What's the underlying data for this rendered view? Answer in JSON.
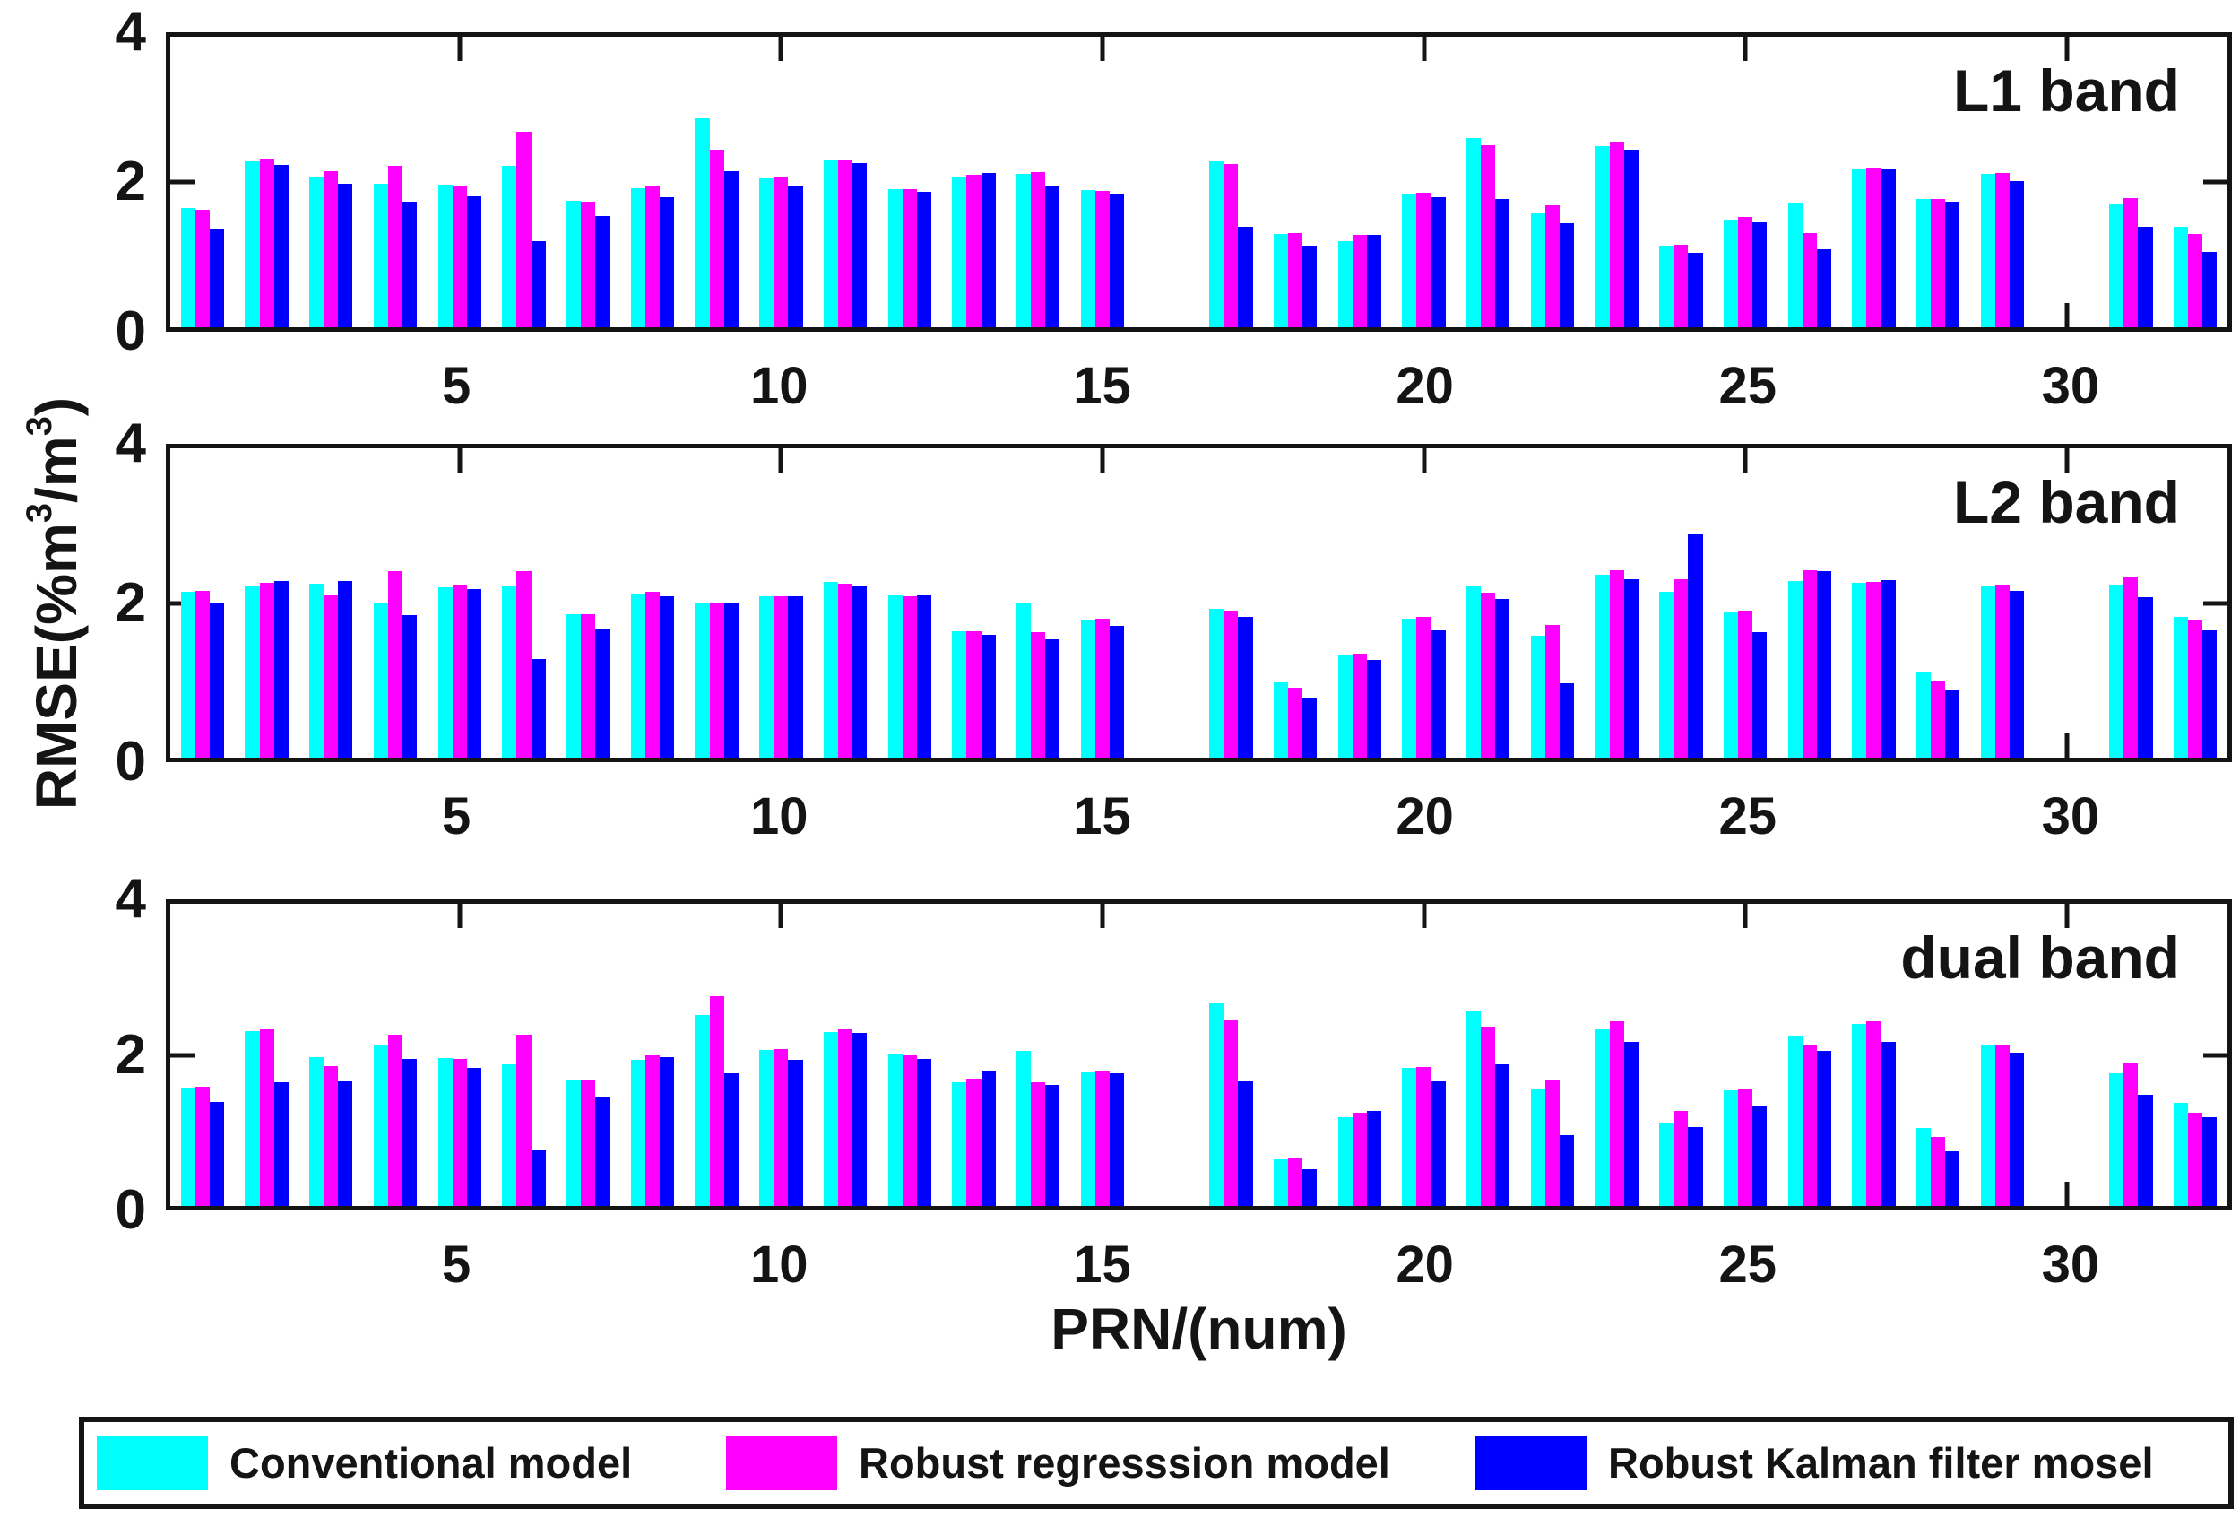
{
  "figure": {
    "background": "#ffffff",
    "axis_color": "#141414",
    "xlabel": "PRN/(num)",
    "ylabel_parts": {
      "p1": "RMSE(%m",
      "s1": "3",
      "p2": "/m",
      "s2": "3",
      "p3": ")"
    },
    "ylim": [
      0,
      4
    ],
    "y_ticks": [
      4,
      2,
      0
    ],
    "x_ticks": [
      5,
      10,
      15,
      20,
      25,
      30
    ],
    "x_count": 32,
    "grid": "off",
    "missing_prn": [
      16,
      30
    ]
  },
  "legend": {
    "entries": [
      {
        "key": "conventional",
        "label": "Conventional model",
        "color": "#00FFFF"
      },
      {
        "key": "robust-regression",
        "label": "Robust regresssion model",
        "color": "#FF00FF"
      },
      {
        "key": "robust-kalman",
        "label": "Robust Kalman filter mosel",
        "color": "#0000FF"
      }
    ],
    "position": "bottom"
  },
  "chart_data": [
    {
      "type": "bar",
      "title": "L1 band",
      "xlabel": "PRN/(num)",
      "ylabel": "RMSE(%m3/m3)",
      "ylim": [
        0,
        4
      ],
      "categories": [
        1,
        2,
        3,
        4,
        5,
        6,
        7,
        8,
        9,
        10,
        11,
        12,
        13,
        14,
        15,
        16,
        17,
        18,
        19,
        20,
        21,
        22,
        23,
        24,
        25,
        26,
        27,
        28,
        29,
        30,
        31,
        32
      ],
      "series": [
        {
          "name": "Conventional model",
          "key": "conventional",
          "color": "#00FFFF",
          "values": [
            1.64,
            2.29,
            2.08,
            1.97,
            1.96,
            2.22,
            1.74,
            1.91,
            2.88,
            2.06,
            2.3,
            1.9,
            2.08,
            2.11,
            1.89,
            null,
            2.28,
            1.29,
            1.19,
            1.84,
            2.61,
            1.57,
            2.5,
            1.12,
            1.48,
            1.72,
            2.19,
            1.76,
            2.11,
            null,
            1.69,
            1.38
          ]
        },
        {
          "name": "Robust regresssion model",
          "key": "robust-regression",
          "color": "#FF00FF",
          "values": [
            1.62,
            2.32,
            2.15,
            2.22,
            1.95,
            2.69,
            1.73,
            1.95,
            2.45,
            2.07,
            2.31,
            1.9,
            2.1,
            2.13,
            1.88,
            null,
            2.25,
            1.3,
            1.27,
            1.85,
            2.51,
            1.68,
            2.56,
            1.14,
            1.52,
            1.3,
            2.2,
            1.76,
            2.12,
            null,
            1.78,
            1.29
          ]
        },
        {
          "name": "Robust Kalman filter mosel",
          "key": "robust-kalman",
          "color": "#0000FF",
          "values": [
            1.36,
            2.24,
            1.98,
            1.73,
            1.8,
            1.18,
            1.53,
            1.79,
            2.15,
            1.94,
            2.26,
            1.86,
            2.12,
            1.95,
            1.84,
            null,
            1.38,
            1.12,
            1.27,
            1.79,
            1.77,
            1.43,
            2.45,
            1.02,
            1.44,
            1.07,
            2.18,
            1.73,
            2.01,
            null,
            1.38,
            1.04
          ]
        }
      ]
    },
    {
      "type": "bar",
      "title": "L2 band",
      "xlabel": "PRN/(num)",
      "ylabel": "RMSE(%m3/m3)",
      "ylim": [
        0,
        4
      ],
      "categories": [
        1,
        2,
        3,
        4,
        5,
        6,
        7,
        8,
        9,
        10,
        11,
        12,
        13,
        14,
        15,
        16,
        17,
        18,
        19,
        20,
        21,
        22,
        23,
        24,
        25,
        26,
        27,
        28,
        29,
        30,
        31,
        32
      ],
      "series": [
        {
          "name": "Conventional model",
          "key": "conventional",
          "color": "#00FFFF",
          "values": [
            2.14,
            2.22,
            2.25,
            1.99,
            2.2,
            2.22,
            1.85,
            2.11,
            1.99,
            2.09,
            2.27,
            2.1,
            1.64,
            1.99,
            1.79,
            null,
            1.92,
            0.97,
            1.32,
            1.8,
            2.21,
            1.58,
            2.37,
            2.14,
            1.89,
            2.29,
            2.26,
            1.11,
            2.23,
            null,
            2.24,
            1.82
          ]
        },
        {
          "name": "Robust regresssion model",
          "key": "robust-regression",
          "color": "#FF00FF",
          "values": [
            2.16,
            2.26,
            2.1,
            2.41,
            2.24,
            2.41,
            1.85,
            2.15,
            1.99,
            2.09,
            2.25,
            2.09,
            1.63,
            1.62,
            1.8,
            null,
            1.9,
            0.9,
            1.35,
            1.82,
            2.13,
            1.72,
            2.42,
            2.31,
            1.9,
            2.42,
            2.27,
            1.0,
            2.24,
            null,
            2.34,
            1.78
          ]
        },
        {
          "name": "Robust Kalman filter mosel",
          "key": "robust-kalman",
          "color": "#0000FF",
          "values": [
            2.0,
            2.28,
            2.28,
            1.84,
            2.18,
            1.28,
            1.67,
            2.09,
            1.99,
            2.09,
            2.22,
            2.1,
            1.59,
            1.53,
            1.7,
            null,
            1.82,
            0.78,
            1.26,
            1.65,
            2.05,
            0.96,
            2.31,
            2.89,
            1.62,
            2.41,
            2.3,
            0.88,
            2.16,
            null,
            2.08,
            1.65
          ]
        }
      ]
    },
    {
      "type": "bar",
      "title": "dual band",
      "xlabel": "PRN/(num)",
      "ylabel": "RMSE(%m3/m3)",
      "ylim": [
        0,
        4
      ],
      "categories": [
        1,
        2,
        3,
        4,
        5,
        6,
        7,
        8,
        9,
        10,
        11,
        12,
        13,
        14,
        15,
        16,
        17,
        18,
        19,
        20,
        21,
        22,
        23,
        24,
        25,
        26,
        27,
        28,
        29,
        30,
        31,
        32
      ],
      "series": [
        {
          "name": "Conventional model",
          "key": "conventional",
          "color": "#00FFFF",
          "values": [
            1.57,
            2.32,
            1.97,
            2.14,
            1.96,
            1.88,
            1.67,
            1.94,
            2.53,
            2.06,
            2.3,
            2.01,
            1.64,
            2.05,
            1.77,
            null,
            2.68,
            0.62,
            1.18,
            1.83,
            2.58,
            1.56,
            2.34,
            1.1,
            1.53,
            2.26,
            2.41,
            1.03,
            2.13,
            null,
            1.76,
            1.37
          ]
        },
        {
          "name": "Robust regresssion model",
          "key": "robust-regression",
          "color": "#FF00FF",
          "values": [
            1.58,
            2.34,
            1.85,
            2.27,
            1.95,
            2.27,
            1.67,
            1.99,
            2.78,
            2.08,
            2.34,
            1.99,
            1.69,
            1.64,
            1.78,
            null,
            2.46,
            0.63,
            1.23,
            1.84,
            2.37,
            1.66,
            2.44,
            1.26,
            1.55,
            2.14,
            2.45,
            0.92,
            2.13,
            null,
            1.89,
            1.24
          ]
        },
        {
          "name": "Robust Kalman filter mosel",
          "key": "robust-kalman",
          "color": "#0000FF",
          "values": [
            1.38,
            1.64,
            1.65,
            1.95,
            1.83,
            0.74,
            1.45,
            1.97,
            1.76,
            1.94,
            2.29,
            1.95,
            1.78,
            1.6,
            1.76,
            null,
            1.65,
            0.49,
            1.26,
            1.65,
            1.87,
            0.94,
            2.17,
            1.05,
            1.33,
            2.05,
            2.17,
            0.73,
            2.03,
            null,
            1.47,
            1.17
          ]
        }
      ]
    }
  ]
}
